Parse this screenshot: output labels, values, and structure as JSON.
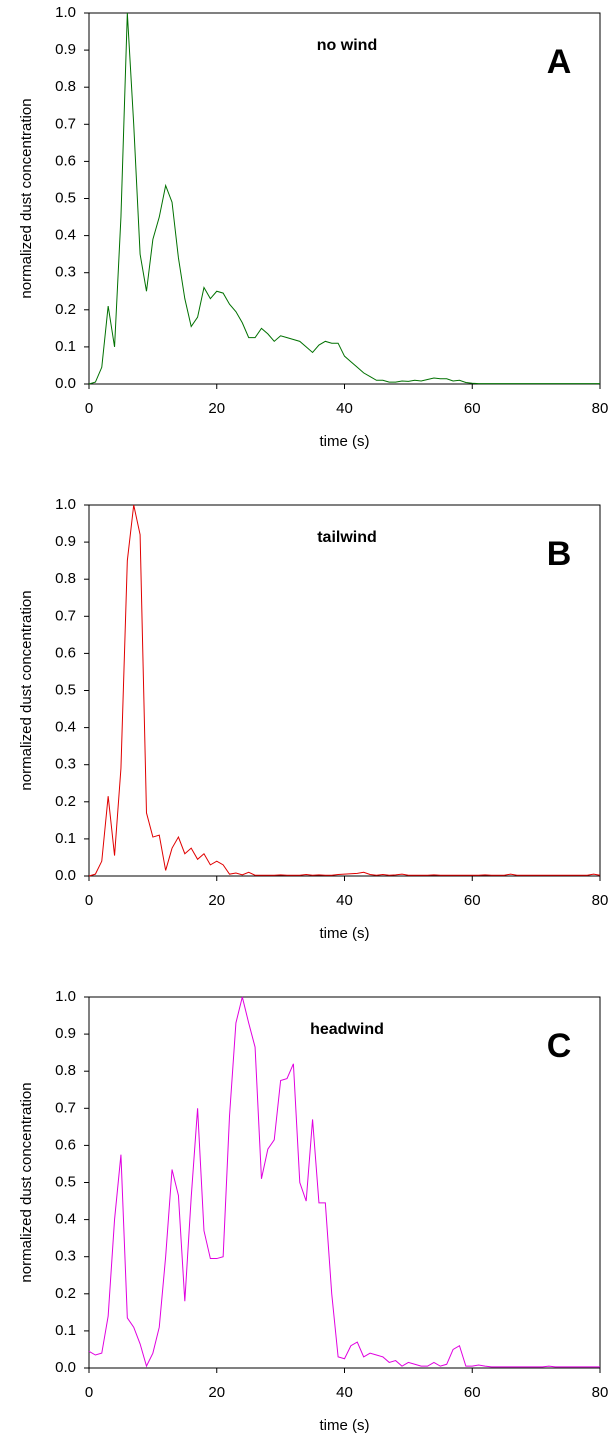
{
  "chart_data": [
    {
      "type": "line",
      "title": "no wind",
      "panel_label": "A",
      "x_label": "time (s)",
      "y_label": "normalized dust concentration",
      "x": [
        0,
        1,
        2,
        3,
        4,
        5,
        6,
        7,
        8,
        9,
        10,
        11,
        12,
        13,
        14,
        15,
        16,
        17,
        18,
        19,
        20,
        21,
        22,
        23,
        24,
        25,
        26,
        27,
        28,
        29,
        30,
        31,
        32,
        33,
        34,
        35,
        36,
        37,
        38,
        39,
        40,
        41,
        42,
        43,
        44,
        45,
        46,
        47,
        48,
        49,
        50,
        51,
        52,
        53,
        54,
        55,
        56,
        57,
        58,
        59,
        60,
        61,
        62,
        63,
        64,
        65,
        66,
        67,
        68,
        69,
        70,
        71,
        72,
        73,
        74,
        75,
        76,
        77,
        78,
        79,
        80
      ],
      "series": [
        {
          "color": "#007000",
          "values": [
            0,
            0.005,
            0.045,
            0.21,
            0.1,
            0.45,
            1.0,
            0.7,
            0.35,
            0.25,
            0.39,
            0.45,
            0.535,
            0.49,
            0.34,
            0.23,
            0.155,
            0.18,
            0.26,
            0.23,
            0.25,
            0.245,
            0.215,
            0.195,
            0.165,
            0.125,
            0.125,
            0.15,
            0.135,
            0.115,
            0.13,
            0.125,
            0.12,
            0.115,
            0.1,
            0.085,
            0.105,
            0.115,
            0.11,
            0.11,
            0.075,
            0.06,
            0.045,
            0.03,
            0.02,
            0.01,
            0.01,
            0.005,
            0.005,
            0.008,
            0.007,
            0.01,
            0.008,
            0.012,
            0.016,
            0.014,
            0.014,
            0.008,
            0.01,
            0.004,
            0.002,
            0.001,
            0.001,
            0.001,
            0.001,
            0.001,
            0.001,
            0.001,
            0.001,
            0.001,
            0.001,
            0.001,
            0.001,
            0.001,
            0.001,
            0.001,
            0.001,
            0.001,
            0.001,
            0.001,
            0.001
          ]
        }
      ],
      "xlim": [
        0,
        80
      ],
      "xticks": [
        0,
        20,
        40,
        60,
        80
      ],
      "ylim": [
        0,
        1
      ],
      "yticks": [
        {
          "value": 0,
          "label": "0.0"
        },
        0.1,
        0.2,
        0.3,
        0.4,
        0.5,
        0.6,
        0.7,
        0.8,
        0.9,
        {
          "value": 1,
          "label": "1.0"
        }
      ]
    },
    {
      "type": "line",
      "title": "tailwind",
      "panel_label": "B",
      "x_label": "time (s)",
      "y_label": "normalized dust concentration",
      "x": [
        0,
        1,
        2,
        3,
        4,
        5,
        6,
        7,
        8,
        9,
        10,
        11,
        12,
        13,
        14,
        15,
        16,
        17,
        18,
        19,
        20,
        21,
        22,
        23,
        24,
        25,
        26,
        27,
        28,
        29,
        30,
        31,
        32,
        33,
        34,
        35,
        36,
        37,
        38,
        39,
        40,
        41,
        42,
        43,
        44,
        45,
        46,
        47,
        48,
        49,
        50,
        51,
        52,
        53,
        54,
        55,
        56,
        57,
        58,
        59,
        60,
        61,
        62,
        63,
        64,
        65,
        66,
        67,
        68,
        69,
        70,
        71,
        72,
        73,
        74,
        75,
        76,
        77,
        78,
        79,
        80
      ],
      "series": [
        {
          "color": "#e00000",
          "values": [
            0,
            0.005,
            0.04,
            0.215,
            0.055,
            0.29,
            0.85,
            1.0,
            0.92,
            0.17,
            0.105,
            0.11,
            0.015,
            0.075,
            0.105,
            0.06,
            0.075,
            0.045,
            0.06,
            0.03,
            0.04,
            0.03,
            0.005,
            0.008,
            0.003,
            0.01,
            0.002,
            0.002,
            0.002,
            0.002,
            0.003,
            0.002,
            0.002,
            0.002,
            0.004,
            0.002,
            0.003,
            0.002,
            0.002,
            0.004,
            0.005,
            0.006,
            0.007,
            0.01,
            0.004,
            0.002,
            0.004,
            0.002,
            0.003,
            0.005,
            0.002,
            0.002,
            0.002,
            0.002,
            0.003,
            0.002,
            0.002,
            0.002,
            0.002,
            0.002,
            0.002,
            0.002,
            0.003,
            0.002,
            0.002,
            0.002,
            0.005,
            0.002,
            0.002,
            0.002,
            0.002,
            0.002,
            0.002,
            0.002,
            0.002,
            0.002,
            0.002,
            0.002,
            0.002,
            0.005,
            0.002
          ]
        }
      ],
      "xlim": [
        0,
        80
      ],
      "xticks": [
        0,
        20,
        40,
        60,
        80
      ],
      "ylim": [
        0,
        1
      ],
      "yticks": [
        {
          "value": 0,
          "label": "0.0"
        },
        0.1,
        0.2,
        0.3,
        0.4,
        0.5,
        0.6,
        0.7,
        0.8,
        0.9,
        {
          "value": 1,
          "label": "1.0"
        }
      ]
    },
    {
      "type": "line",
      "title": "headwind",
      "panel_label": "C",
      "x_label": "time (s)",
      "y_label": "normalized dust concentration",
      "x": [
        0,
        1,
        2,
        3,
        4,
        5,
        6,
        7,
        8,
        9,
        10,
        11,
        12,
        13,
        14,
        15,
        16,
        17,
        18,
        19,
        20,
        21,
        22,
        23,
        24,
        25,
        26,
        27,
        28,
        29,
        30,
        31,
        32,
        33,
        34,
        35,
        36,
        37,
        38,
        39,
        40,
        41,
        42,
        43,
        44,
        45,
        46,
        47,
        48,
        49,
        50,
        51,
        52,
        53,
        54,
        55,
        56,
        57,
        58,
        59,
        60,
        61,
        62,
        63,
        64,
        65,
        66,
        67,
        68,
        69,
        70,
        71,
        72,
        73,
        74,
        75,
        76,
        77,
        78,
        79,
        80
      ],
      "series": [
        {
          "color": "#e000e0",
          "values": [
            0.045,
            0.035,
            0.04,
            0.14,
            0.4,
            0.575,
            0.135,
            0.11,
            0.065,
            0.005,
            0.04,
            0.11,
            0.3,
            0.535,
            0.465,
            0.18,
            0.46,
            0.7,
            0.37,
            0.295,
            0.295,
            0.3,
            0.68,
            0.93,
            1.0,
            0.93,
            0.865,
            0.51,
            0.59,
            0.615,
            0.775,
            0.78,
            0.82,
            0.5,
            0.45,
            0.67,
            0.445,
            0.445,
            0.2,
            0.03,
            0.025,
            0.06,
            0.07,
            0.03,
            0.04,
            0.035,
            0.03,
            0.015,
            0.02,
            0.005,
            0.015,
            0.01,
            0.005,
            0.005,
            0.015,
            0.005,
            0.01,
            0.05,
            0.06,
            0.005,
            0.005,
            0.008,
            0.005,
            0.003,
            0.003,
            0.003,
            0.003,
            0.003,
            0.003,
            0.003,
            0.003,
            0.003,
            0.005,
            0.003,
            0.003,
            0.003,
            0.003,
            0.003,
            0.003,
            0.003,
            0.003
          ]
        }
      ],
      "xlim": [
        0,
        80
      ],
      "xticks": [
        0,
        20,
        40,
        60,
        80
      ],
      "ylim": [
        0,
        1
      ],
      "yticks": [
        {
          "value": 0,
          "label": "0.0"
        },
        0.1,
        0.2,
        0.3,
        0.4,
        0.5,
        0.6,
        0.7,
        0.8,
        0.9,
        {
          "value": 1,
          "label": "1.0"
        }
      ]
    }
  ]
}
